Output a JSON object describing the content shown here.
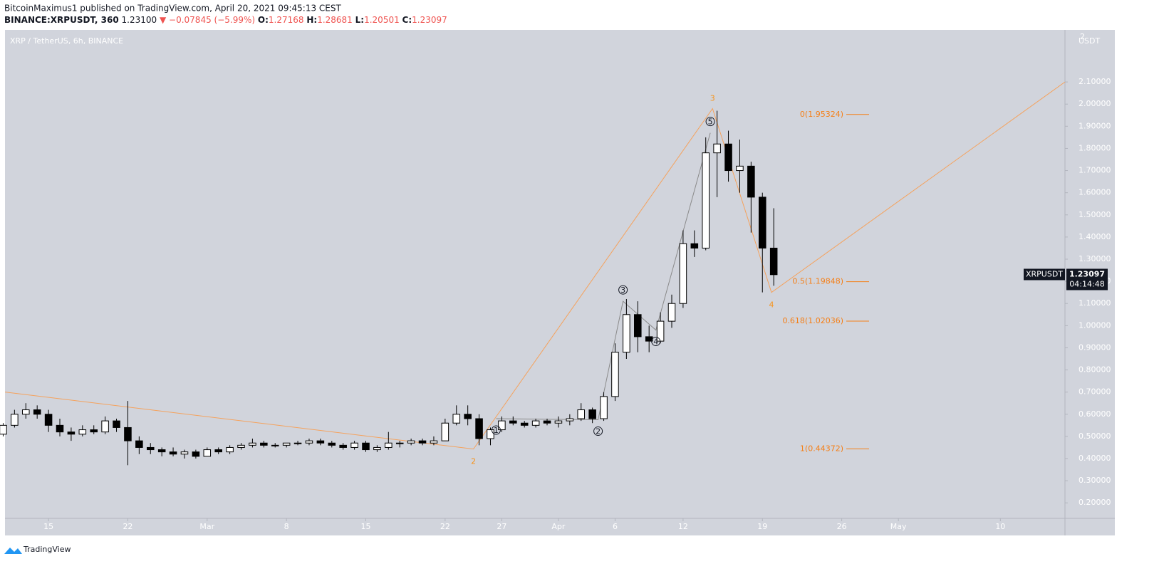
{
  "header": {
    "publisher": "BitcoinMaximus1 published on TradingView.com, April 20, 2021 09:45:13 CEST",
    "symbol": "BINANCE:XRPUSDT, 360",
    "last": "1.23100",
    "arrow": "▼",
    "change": "−0.07845 (−5.99%)",
    "open_label": "O:",
    "open": "1.27168",
    "high_label": "H:",
    "high": "1.28681",
    "low_label": "L:",
    "low": "1.20501",
    "close_label": "C:",
    "close": "1.23097"
  },
  "footer": {
    "brand": "TradingView"
  },
  "chart_data": {
    "type": "candlestick",
    "legend": "XRP / TetherUS, 6h, BINANCE",
    "axis_top_label": "2",
    "currency": "USDT",
    "up_color": "#ffffff",
    "down_color": "#000000",
    "x": [
      42,
      43,
      44,
      45,
      46,
      47,
      48,
      49,
      50,
      51,
      52,
      53,
      54,
      55,
      56,
      57,
      58,
      59,
      60,
      61,
      62,
      63,
      64,
      65,
      66,
      67,
      68,
      69,
      70,
      71,
      72,
      73,
      74,
      75,
      76,
      77,
      78,
      79,
      80,
      81,
      82,
      83,
      84,
      85,
      86,
      87,
      88,
      89,
      90,
      91,
      92,
      93,
      94,
      95,
      96,
      97,
      98,
      99,
      100,
      101,
      102,
      103,
      104,
      105,
      106,
      107,
      108,
      109,
      110
    ],
    "open": [
      0.51,
      0.55,
      0.6,
      0.62,
      0.6,
      0.55,
      0.52,
      0.51,
      0.53,
      0.52,
      0.57,
      0.54,
      0.48,
      0.45,
      0.44,
      0.43,
      0.42,
      0.43,
      0.41,
      0.44,
      0.43,
      0.45,
      0.46,
      0.47,
      0.46,
      0.46,
      0.47,
      0.47,
      0.48,
      0.47,
      0.46,
      0.45,
      0.47,
      0.44,
      0.45,
      0.47,
      0.47,
      0.48,
      0.47,
      0.48,
      0.56,
      0.6,
      0.58,
      0.49,
      0.53,
      0.57,
      0.56,
      0.55,
      0.57,
      0.56,
      0.57,
      0.58,
      0.62,
      0.58,
      0.68,
      0.88,
      1.05,
      0.95,
      0.93,
      1.02,
      1.1,
      1.37,
      1.35,
      1.78,
      1.82,
      1.7,
      1.72,
      1.58,
      1.35
    ],
    "high": [
      0.56,
      0.62,
      0.65,
      0.64,
      0.62,
      0.58,
      0.54,
      0.55,
      0.55,
      0.59,
      0.58,
      0.66,
      0.5,
      0.47,
      0.45,
      0.45,
      0.44,
      0.44,
      0.45,
      0.45,
      0.46,
      0.47,
      0.49,
      0.48,
      0.47,
      0.47,
      0.48,
      0.49,
      0.49,
      0.48,
      0.47,
      0.48,
      0.48,
      0.46,
      0.52,
      0.48,
      0.49,
      0.49,
      0.5,
      0.58,
      0.64,
      0.64,
      0.6,
      0.54,
      0.59,
      0.59,
      0.57,
      0.58,
      0.58,
      0.59,
      0.6,
      0.65,
      0.63,
      0.7,
      0.92,
      1.12,
      1.11,
      1.0,
      1.06,
      1.14,
      1.43,
      1.43,
      1.85,
      1.97,
      1.88,
      1.84,
      1.74,
      1.6,
      1.53
    ],
    "low": [
      0.5,
      0.54,
      0.58,
      0.58,
      0.52,
      0.5,
      0.48,
      0.5,
      0.51,
      0.51,
      0.52,
      0.37,
      0.42,
      0.42,
      0.41,
      0.41,
      0.4,
      0.4,
      0.41,
      0.42,
      0.42,
      0.44,
      0.45,
      0.45,
      0.45,
      0.45,
      0.46,
      0.46,
      0.46,
      0.45,
      0.44,
      0.44,
      0.43,
      0.43,
      0.44,
      0.45,
      0.46,
      0.46,
      0.46,
      0.48,
      0.55,
      0.55,
      0.46,
      0.46,
      0.52,
      0.55,
      0.54,
      0.54,
      0.55,
      0.54,
      0.55,
      0.57,
      0.56,
      0.57,
      0.66,
      0.85,
      0.88,
      0.88,
      0.92,
      0.99,
      1.08,
      1.31,
      1.34,
      1.58,
      1.65,
      1.6,
      1.42,
      1.15,
      1.18
    ],
    "close": [
      0.55,
      0.6,
      0.62,
      0.6,
      0.55,
      0.52,
      0.51,
      0.53,
      0.52,
      0.57,
      0.54,
      0.48,
      0.45,
      0.44,
      0.43,
      0.42,
      0.43,
      0.41,
      0.44,
      0.43,
      0.45,
      0.46,
      0.47,
      0.46,
      0.46,
      0.47,
      0.47,
      0.48,
      0.47,
      0.46,
      0.45,
      0.47,
      0.44,
      0.45,
      0.47,
      0.47,
      0.48,
      0.47,
      0.48,
      0.56,
      0.6,
      0.58,
      0.49,
      0.53,
      0.57,
      0.56,
      0.55,
      0.57,
      0.56,
      0.57,
      0.58,
      0.62,
      0.58,
      0.68,
      0.88,
      1.05,
      0.95,
      0.93,
      1.02,
      1.1,
      1.37,
      1.35,
      1.78,
      1.82,
      1.7,
      1.72,
      1.58,
      1.35,
      1.23
    ],
    "xlim": [
      42.16,
      135.7
    ],
    "xticks": [
      {
        "value": 46,
        "label": "15"
      },
      {
        "value": 53,
        "label": "22"
      },
      {
        "value": 60,
        "label": "Mar"
      },
      {
        "value": 67,
        "label": "8"
      },
      {
        "value": 74,
        "label": "15"
      },
      {
        "value": 81,
        "label": "22"
      },
      {
        "value": 86,
        "label": "27"
      },
      {
        "value": 91,
        "label": "Apr"
      },
      {
        "value": 96,
        "label": "6"
      },
      {
        "value": 102,
        "label": "12"
      },
      {
        "value": 109,
        "label": "19"
      },
      {
        "value": 116,
        "label": "26"
      },
      {
        "value": 121,
        "label": "May"
      },
      {
        "value": 130,
        "label": "10"
      }
    ],
    "ylim": [
      0.13,
      2.335
    ],
    "yticks": [
      {
        "value": 0.2,
        "label": "0.20000"
      },
      {
        "value": 0.3,
        "label": "0.30000"
      },
      {
        "value": 0.4,
        "label": "0.40000"
      },
      {
        "value": 0.5,
        "label": "0.50000"
      },
      {
        "value": 0.6,
        "label": "0.60000"
      },
      {
        "value": 0.7,
        "label": "0.70000"
      },
      {
        "value": 0.8,
        "label": "0.80000"
      },
      {
        "value": 0.9,
        "label": "0.90000"
      },
      {
        "value": 1.0,
        "label": "1.00000"
      },
      {
        "value": 1.1,
        "label": "1.10000"
      },
      {
        "value": 1.2,
        "label": "1.20000"
      },
      {
        "value": 1.3,
        "label": "1.30000"
      },
      {
        "value": 1.4,
        "label": "1.40000"
      },
      {
        "value": 1.5,
        "label": "1.50000"
      },
      {
        "value": 1.6,
        "label": "1.60000"
      },
      {
        "value": 1.7,
        "label": "1.70000"
      },
      {
        "value": 1.8,
        "label": "1.80000"
      },
      {
        "value": 1.9,
        "label": "1.90000"
      },
      {
        "value": 2.0,
        "label": "2.00000"
      },
      {
        "value": 2.1,
        "label": "2.10000"
      }
    ],
    "price_tag": {
      "symbol": "XRPUSDT",
      "value": 1.23097,
      "label": "1.23097",
      "countdown": "04:14:48"
    },
    "fib_levels": [
      {
        "label": "0(1.95324)",
        "value": 1.95324
      },
      {
        "label": "0.5(1.19848)",
        "value": 1.19848
      },
      {
        "label": "0.618(1.02036)",
        "value": 1.02036
      },
      {
        "label": "1(0.44372)",
        "value": 0.44372
      }
    ],
    "fib_color": "#f57f17",
    "major_wave": {
      "color": "#f5a25d",
      "label_color": "#f7931a",
      "points": [
        {
          "label": null,
          "x": 42.16,
          "y": 0.7
        },
        {
          "label": "2",
          "x": 83.5,
          "y": 0.443
        },
        {
          "label": "3",
          "x": 104.6,
          "y": 1.98
        },
        {
          "label": "4",
          "x": 109.8,
          "y": 1.15
        },
        {
          "label": null,
          "x": 135.7,
          "y": 2.1
        }
      ]
    },
    "minor_wave": {
      "color": "#8a8a8a",
      "points": [
        {
          "label": "1",
          "x": 85.5,
          "y": 0.58
        },
        {
          "label": "2",
          "x": 94.5,
          "y": 0.575
        },
        {
          "label": "3",
          "x": 96.7,
          "y": 1.11
        },
        {
          "label": "4",
          "x": 99.6,
          "y": 0.98
        },
        {
          "label": "5",
          "x": 104.4,
          "y": 1.87
        }
      ]
    }
  }
}
